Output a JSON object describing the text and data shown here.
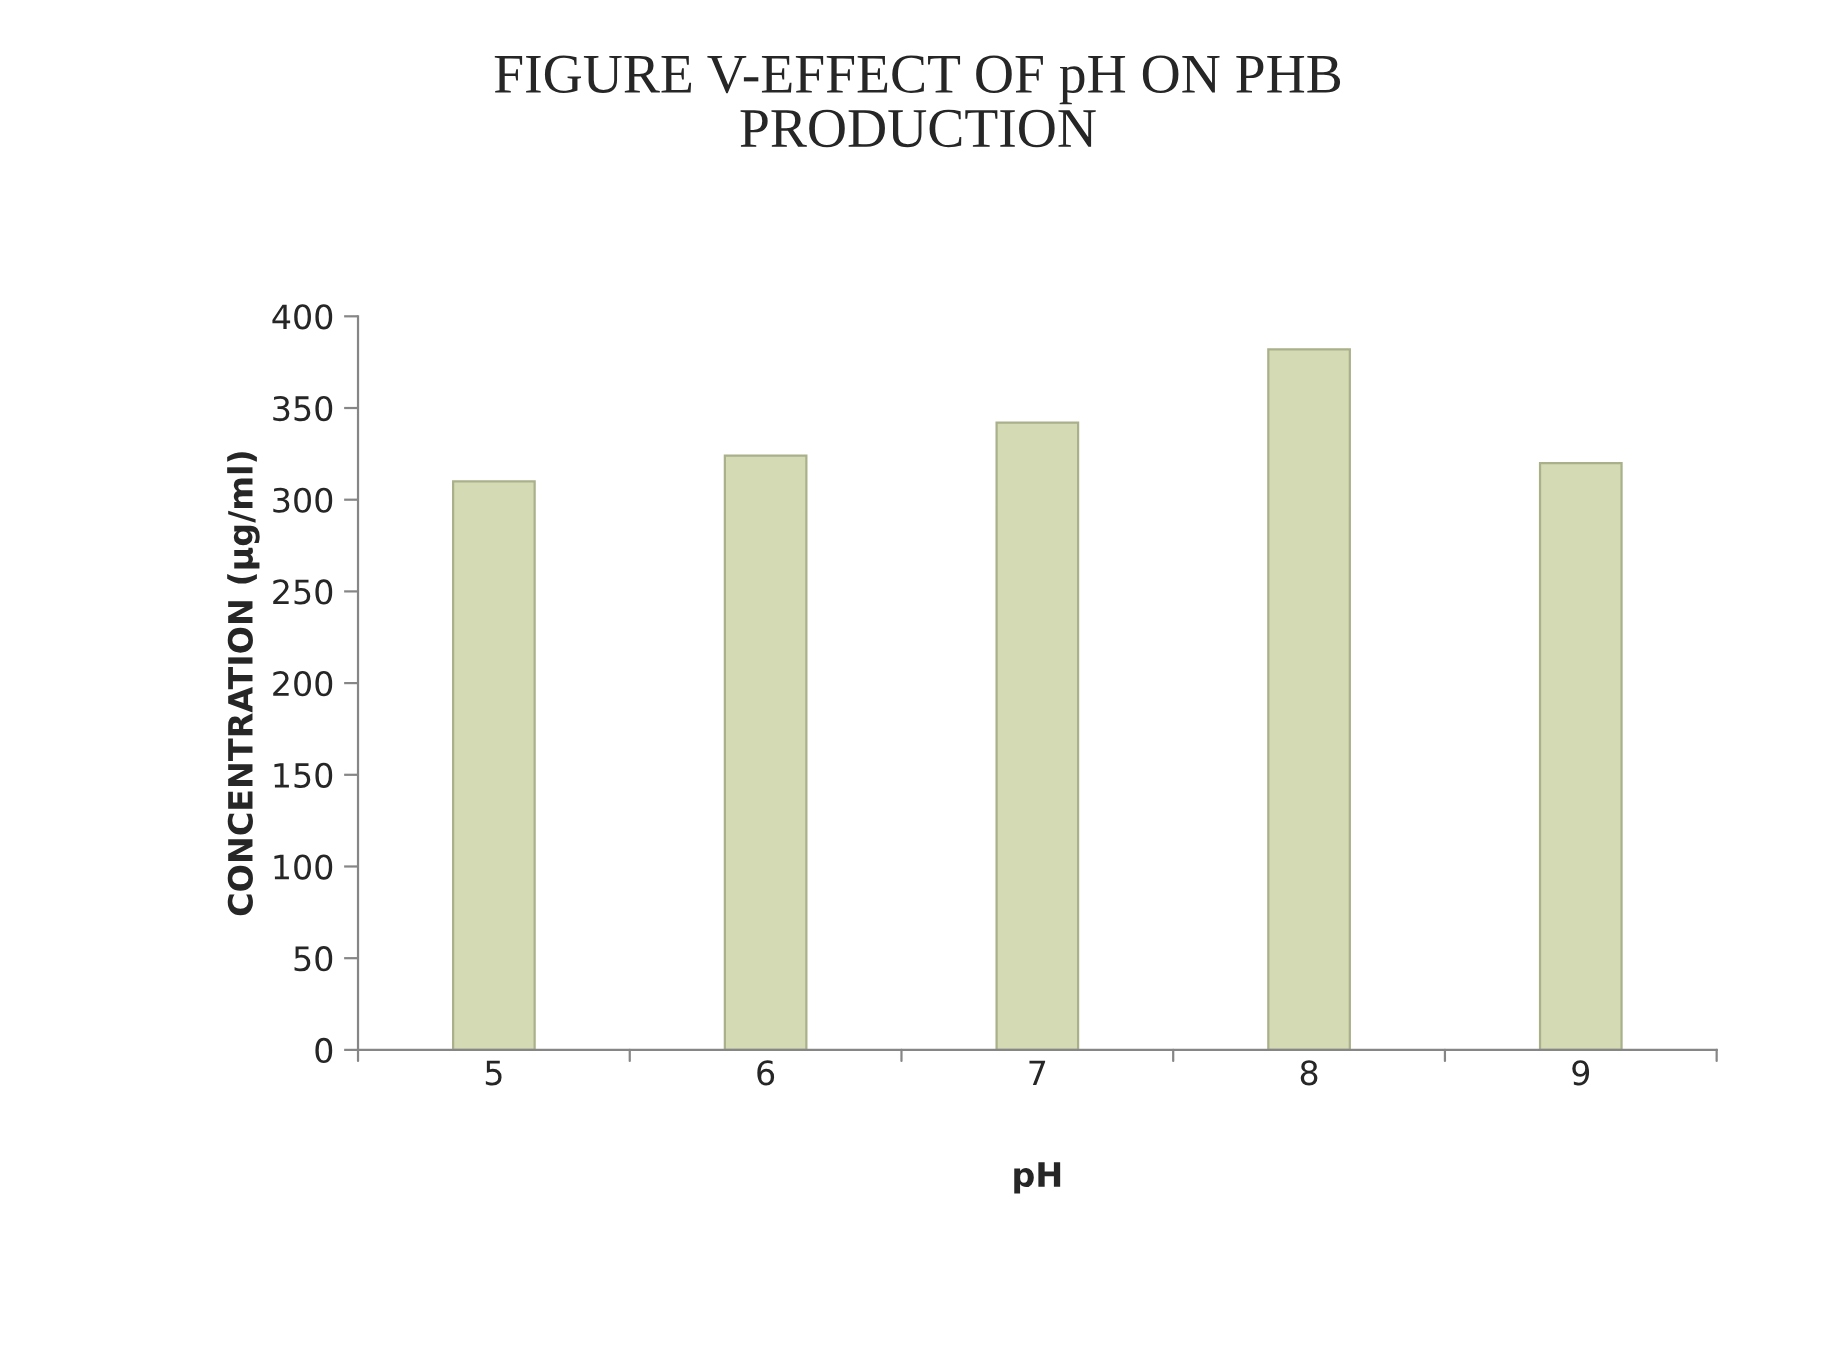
{
  "chart_data": {
    "type": "bar",
    "title": "FIGURE V-EFFECT OF pH ON PHB\nPRODUCTION",
    "xlabel": "pH",
    "ylabel": "CONCENTRATION (µg/ml)",
    "categories": [
      "5",
      "6",
      "7",
      "8",
      "9"
    ],
    "values": [
      310,
      324,
      342,
      382,
      320
    ],
    "color": "#d3dab4",
    "ylim": [
      0,
      400
    ],
    "yticks": [
      0,
      50,
      100,
      150,
      200,
      250,
      300,
      350,
      400
    ],
    "grid": false,
    "legend": false
  }
}
